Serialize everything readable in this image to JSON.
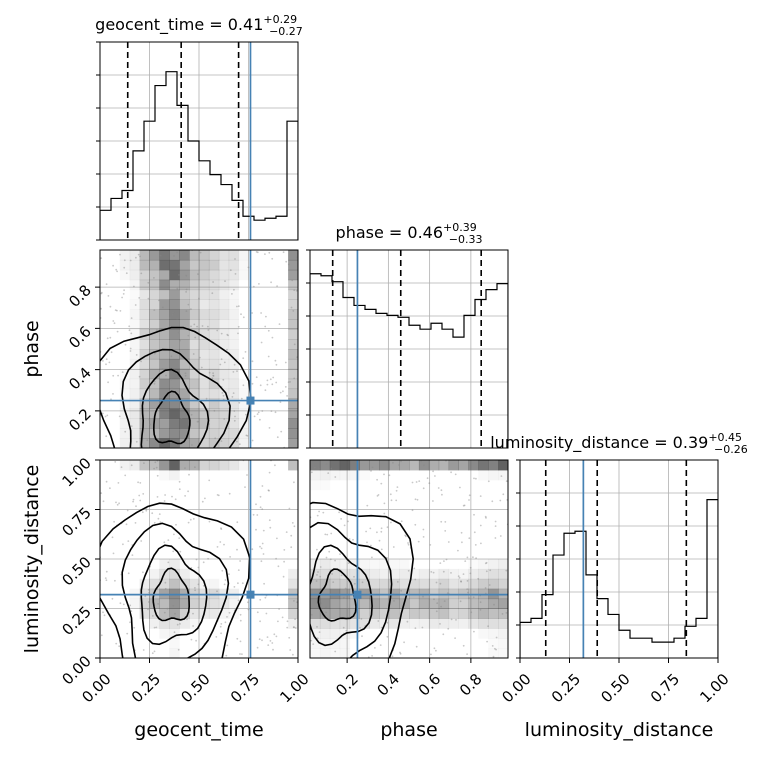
{
  "figure": {
    "titles": [
      {
        "name": "geocent_time",
        "median": "0.41",
        "plus": "+0.29",
        "minus": "−0.27"
      },
      {
        "name": "phase",
        "median": "0.46",
        "plus": "+0.39",
        "minus": "−0.33"
      },
      {
        "name": "luminosity_distance",
        "median": "0.39",
        "plus": "+0.45",
        "minus": "−0.26"
      }
    ],
    "xlabels": [
      "geocent_time",
      "phase",
      "luminosity_distance"
    ],
    "ylabels": [
      "phase",
      "luminosity_distance"
    ]
  },
  "chart_data": {
    "type": "corner",
    "parameters": [
      "geocent_time",
      "phase",
      "luminosity_distance"
    ],
    "truths": {
      "geocent_time": 0.76,
      "phase": 0.25,
      "luminosity_distance": 0.32
    },
    "ranges": {
      "geocent_time": [
        0,
        1
      ],
      "phase": [
        0.02,
        0.98
      ],
      "luminosity_distance": [
        0,
        1
      ]
    },
    "ticks": {
      "geocent_time": [
        "0.00",
        "0.25",
        "0.50",
        "0.75",
        "1.00"
      ],
      "phase": [
        "0.2",
        "0.4",
        "0.6",
        "0.8"
      ],
      "luminosity_distance": [
        "0.00",
        "0.25",
        "0.50",
        "0.75",
        "1.00"
      ]
    },
    "quantiles": {
      "geocent_time": [
        0.14,
        0.41,
        0.7
      ],
      "phase": [
        0.13,
        0.46,
        0.85
      ],
      "luminosity_distance": [
        0.13,
        0.39,
        0.84
      ]
    },
    "histograms": {
      "geocent_time": [
        0.15,
        0.21,
        0.25,
        0.45,
        0.6,
        0.78,
        0.85,
        0.68,
        0.5,
        0.4,
        0.33,
        0.28,
        0.2,
        0.12,
        0.1,
        0.11,
        0.12,
        0.6
      ],
      "phase": [
        0.88,
        0.87,
        0.84,
        0.76,
        0.72,
        0.7,
        0.68,
        0.67,
        0.66,
        0.62,
        0.6,
        0.63,
        0.6,
        0.56,
        0.67,
        0.75,
        0.8,
        0.83
      ],
      "luminosity_distance": [
        0.18,
        0.2,
        0.32,
        0.52,
        0.63,
        0.64,
        0.42,
        0.3,
        0.22,
        0.14,
        0.1,
        0.1,
        0.08,
        0.08,
        0.1,
        0.16,
        0.2,
        0.8
      ]
    }
  }
}
